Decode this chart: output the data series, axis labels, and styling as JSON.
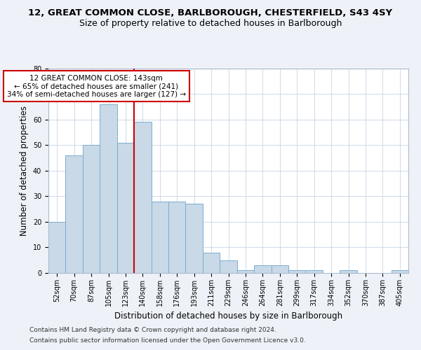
{
  "title1": "12, GREAT COMMON CLOSE, BARLBOROUGH, CHESTERFIELD, S43 4SY",
  "title2": "Size of property relative to detached houses in Barlborough",
  "xlabel": "Distribution of detached houses by size in Barlborough",
  "ylabel": "Number of detached properties",
  "categories": [
    "52sqm",
    "70sqm",
    "87sqm",
    "105sqm",
    "123sqm",
    "140sqm",
    "158sqm",
    "176sqm",
    "193sqm",
    "211sqm",
    "229sqm",
    "246sqm",
    "264sqm",
    "281sqm",
    "299sqm",
    "317sqm",
    "334sqm",
    "352sqm",
    "370sqm",
    "387sqm",
    "405sqm"
  ],
  "values": [
    20,
    46,
    50,
    66,
    51,
    59,
    28,
    28,
    27,
    8,
    5,
    1,
    3,
    3,
    1,
    1,
    0,
    1,
    0,
    0,
    1
  ],
  "bar_color": "#c9d9e8",
  "bar_edge_color": "#7aadcc",
  "vline_x_idx": 5,
  "vline_color": "#cc0000",
  "annotation_line1": "12 GREAT COMMON CLOSE: 143sqm",
  "annotation_line2": "← 65% of detached houses are smaller (241)",
  "annotation_line3": "34% of semi-detached houses are larger (127) →",
  "annotation_box_color": "#cc0000",
  "ylim": [
    0,
    80
  ],
  "yticks": [
    0,
    10,
    20,
    30,
    40,
    50,
    60,
    70,
    80
  ],
  "footer1": "Contains HM Land Registry data © Crown copyright and database right 2024.",
  "footer2": "Contains public sector information licensed under the Open Government Licence v3.0.",
  "bg_color": "#eef2f8",
  "plot_bg_color": "#ffffff",
  "title_fontsize": 9.5,
  "subtitle_fontsize": 9,
  "tick_fontsize": 7,
  "ylabel_fontsize": 8.5,
  "xlabel_fontsize": 8.5,
  "footer_fontsize": 6.5,
  "annot_fontsize": 7.5
}
